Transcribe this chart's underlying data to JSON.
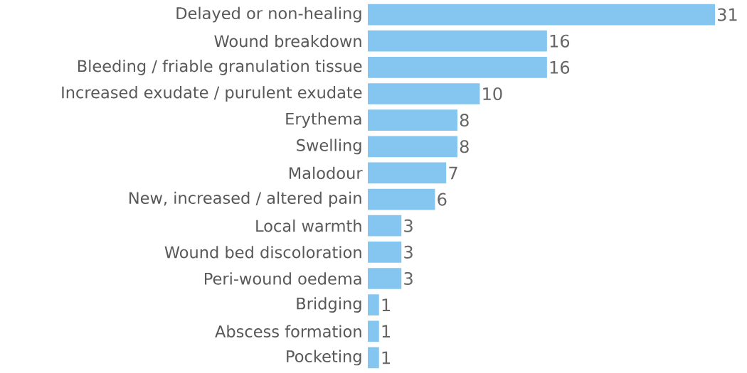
{
  "chart_data": {
    "type": "bar",
    "orientation": "horizontal",
    "categories": [
      "Delayed or non-healing",
      "Wound breakdown",
      "Bleeding / friable granulation tissue",
      "Increased exudate / purulent exudate",
      "Erythema",
      "Swelling",
      "Malodour",
      "New, increased / altered pain",
      "Local warmth",
      "Wound bed discoloration",
      "Peri-wound oedema",
      "Bridging",
      "Abscess formation",
      "Pocketing"
    ],
    "values": [
      31,
      16,
      16,
      10,
      8,
      8,
      7,
      6,
      3,
      3,
      3,
      1,
      1,
      1
    ],
    "color": "#85c6f0",
    "data_labels": true
  }
}
